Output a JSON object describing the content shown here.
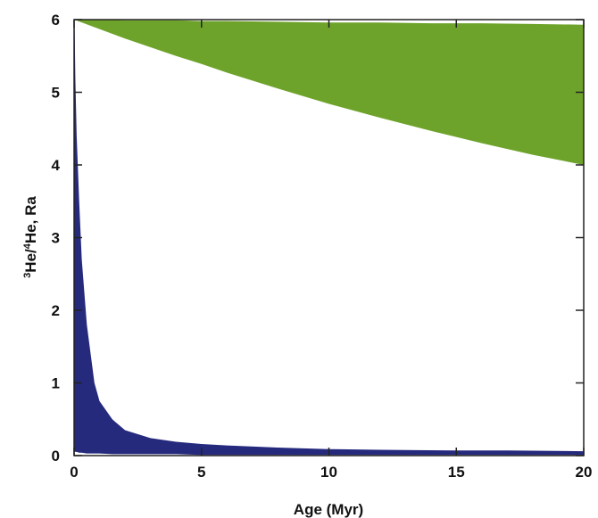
{
  "chart_data": {
    "type": "area",
    "xlabel": "Age (Myr)",
    "ylabel": {
      "sup1": "3",
      "part1": "He/",
      "sup2": "4",
      "part2": "He, Ra"
    },
    "xlim": [
      0,
      20
    ],
    "ylim": [
      0,
      6
    ],
    "x_ticks": [
      0,
      5,
      10,
      15,
      20
    ],
    "y_ticks": [
      0,
      1,
      2,
      3,
      4,
      5,
      6
    ],
    "grid": false,
    "legend": "none",
    "series": [
      {
        "color": "#6ea32b",
        "x": [
          0,
          1,
          2,
          3,
          4,
          5,
          6,
          8,
          10,
          12,
          14,
          16,
          18,
          20
        ],
        "upper": [
          6.0,
          6.0,
          5.99,
          5.99,
          5.99,
          5.98,
          5.98,
          5.97,
          5.96,
          5.96,
          5.95,
          5.95,
          5.94,
          5.93
        ],
        "lower": [
          6.0,
          5.87,
          5.74,
          5.62,
          5.5,
          5.39,
          5.27,
          5.05,
          4.84,
          4.65,
          4.47,
          4.3,
          4.14,
          4.0
        ]
      },
      {
        "color": "#262a7d",
        "x": [
          0,
          0.02,
          0.05,
          0.1,
          0.2,
          0.3,
          0.5,
          0.8,
          1.0,
          1.5,
          2,
          3,
          4,
          5,
          6,
          8,
          10,
          12,
          15,
          17,
          20
        ],
        "upper": [
          6.0,
          5.9,
          5.2,
          4.4,
          3.5,
          2.7,
          1.8,
          1.0,
          0.75,
          0.5,
          0.35,
          0.24,
          0.19,
          0.16,
          0.14,
          0.11,
          0.09,
          0.08,
          0.07,
          0.07,
          0.06
        ],
        "lower": [
          0.0,
          0.06,
          0.05,
          0.05,
          0.04,
          0.04,
          0.03,
          0.03,
          0.03,
          0.02,
          0.02,
          0.02,
          0.02,
          0.01,
          0.01,
          0.01,
          0.01,
          0.01,
          0.01,
          0.01,
          0.01
        ]
      }
    ]
  }
}
